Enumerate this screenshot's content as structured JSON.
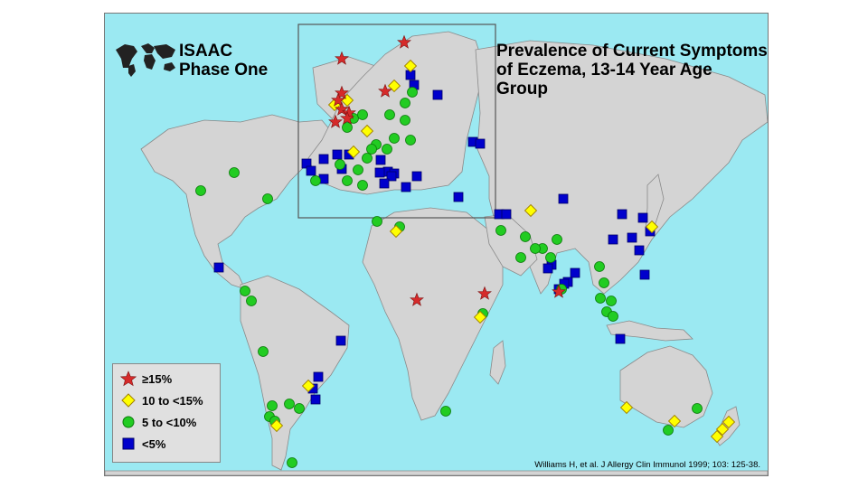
{
  "logo_title": "ISAAC Phase One",
  "title": "Prevalence of Current Symptoms of Eczema, 13-14 Year Age Group",
  "citation": "Williams H, et al. J Allergy Clin Immunol 1999; 103: 125-38.",
  "colors": {
    "ocean": "#9be9f2",
    "land": "#d4d4d4",
    "star": "#d62a2a",
    "diamond": "#ffff00",
    "circle": "#22cc22",
    "square": "#0000cc"
  },
  "legend": [
    {
      "label": "≥15%",
      "shape": "star"
    },
    {
      "label": "10 to <15%",
      "shape": "diamond"
    },
    {
      "label": "5 to <10%",
      "shape": "circle"
    },
    {
      "label": "<5%",
      "shape": "square"
    }
  ]
}
